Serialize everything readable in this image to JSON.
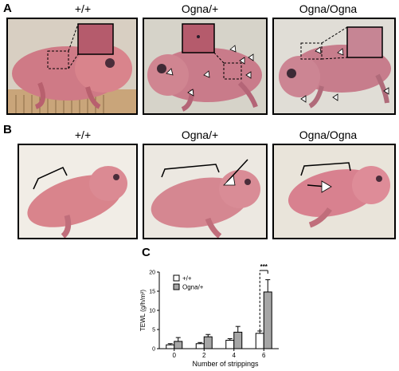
{
  "figure": {
    "panels": [
      {
        "letter": "A",
        "genotypes": [
          "+/+",
          "Ogna/+",
          "Ogna/Ogna"
        ]
      },
      {
        "letter": "B",
        "genotypes": [
          "+/+",
          "Ogna/+",
          "Ogna/Ogna"
        ]
      },
      {
        "letter": "C"
      }
    ],
    "colors": {
      "skin_pink": "#d9848c",
      "skin_dark": "#a34a5a",
      "bg_wood": "#c9a57a",
      "bg_cloth": "#e8e2d8",
      "bg_light": "#f1ede6",
      "inset_bg": "#b55b6c"
    }
  },
  "chart_data": {
    "type": "bar",
    "title": "",
    "xlabel": "Number of strippings",
    "ylabel": "TEWL (g/h/m²)",
    "categories": [
      "0",
      "2",
      "4",
      "6"
    ],
    "ylim": [
      0,
      20
    ],
    "yticks": [
      "0",
      "5",
      "10",
      "15",
      "20"
    ],
    "series": [
      {
        "name": "+/+",
        "color": "#ffffff",
        "values": [
          1.0,
          1.3,
          2.2,
          4.0
        ],
        "errors": [
          0.3,
          0.3,
          0.4,
          0.6
        ]
      },
      {
        "name": "Ogna/+",
        "color": "#a6a6a6",
        "values": [
          1.9,
          3.1,
          4.3,
          14.8
        ],
        "errors": [
          1.0,
          0.6,
          1.5,
          3.2
        ]
      }
    ],
    "annotation": {
      "text": "***",
      "category": "6"
    },
    "legend_position": "top-left"
  }
}
